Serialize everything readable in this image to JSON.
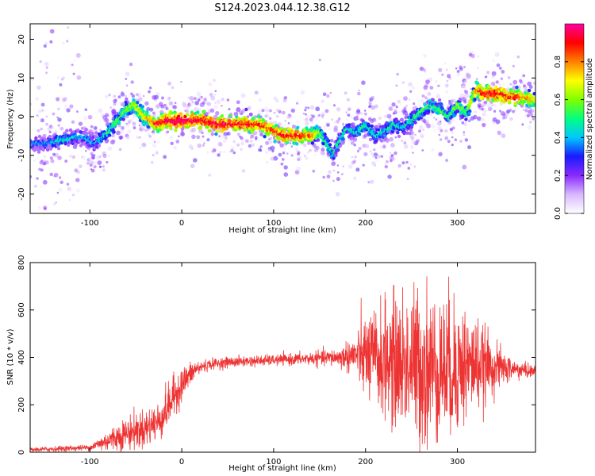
{
  "figure": {
    "title": "S124.2023.044.12.38.G12"
  },
  "chart_data": [
    {
      "type": "heatmap",
      "title": "",
      "xlabel": "Height of straight line (km)",
      "ylabel": "Frequency (Hz)",
      "xlim": [
        -165,
        385
      ],
      "ylim": [
        -25,
        24
      ],
      "xticks": [
        -100,
        0,
        100,
        200,
        300
      ],
      "yticks": [
        -20,
        -10,
        0,
        10,
        20
      ],
      "colorbar": {
        "label": "Normalized spectral amplitude",
        "range": [
          0,
          1
        ],
        "ticks": [
          0.0,
          0.2,
          0.4,
          0.6,
          0.8
        ],
        "colormap": [
          "#ffffff",
          "#d8b8ff",
          "#8a2bff",
          "#1a1aff",
          "#00c8ff",
          "#00ff80",
          "#80ff00",
          "#ffff00",
          "#ff8000",
          "#ff0000",
          "#ff00a0"
        ]
      },
      "ridge": {
        "x": [
          -150,
          -130,
          -110,
          -95,
          -80,
          -70,
          -60,
          -52,
          -45,
          -35,
          -25,
          -15,
          0,
          20,
          40,
          60,
          80,
          95,
          110,
          125,
          140,
          150,
          158,
          165,
          172,
          180,
          190,
          200,
          210,
          220,
          230,
          240,
          250,
          260,
          270,
          280,
          290,
          300,
          310,
          320,
          330,
          345,
          360,
          375,
          385
        ],
        "freq": [
          -7,
          -6,
          -5,
          -7,
          -4,
          -1,
          2,
          3,
          1,
          -1,
          -2,
          -1,
          -1,
          -1,
          -2,
          -2,
          -2,
          -3,
          -5,
          -5,
          -5,
          -4,
          -7,
          -10,
          -6,
          -3,
          -4,
          -2,
          -5,
          -4,
          -2,
          -3,
          -1,
          1,
          3,
          2,
          0,
          3,
          1,
          7,
          6,
          6,
          5,
          5,
          4
        ],
        "amplitude": [
          0.35,
          0.45,
          0.4,
          0.4,
          0.5,
          0.55,
          0.6,
          0.65,
          0.7,
          0.75,
          0.9,
          0.95,
          0.98,
          0.92,
          0.95,
          0.92,
          0.9,
          0.85,
          0.9,
          0.9,
          0.8,
          0.6,
          0.5,
          0.45,
          0.5,
          0.45,
          0.45,
          0.5,
          0.45,
          0.45,
          0.5,
          0.45,
          0.5,
          0.55,
          0.5,
          0.55,
          0.5,
          0.6,
          0.55,
          0.8,
          0.95,
          0.9,
          0.9,
          0.8,
          0.7
        ]
      },
      "grid": false
    },
    {
      "type": "line",
      "title": "",
      "xlabel": "Height of straight line (km)",
      "ylabel": "SNR (10 * v/v)",
      "xlim": [
        -165,
        385
      ],
      "ylim": [
        0,
        800
      ],
      "xticks": [
        -100,
        0,
        100,
        200,
        300
      ],
      "yticks": [
        0,
        200,
        400,
        600,
        800
      ],
      "line_color": "#ee3333",
      "grid": false,
      "envelope": {
        "x": [
          -165,
          -130,
          -100,
          -80,
          -60,
          -40,
          -25,
          -15,
          -5,
          5,
          15,
          30,
          50,
          80,
          110,
          140,
          170,
          190,
          200,
          215,
          230,
          250,
          265,
          280,
          300,
          320,
          340,
          360,
          385
        ],
        "mean": [
          10,
          15,
          20,
          50,
          80,
          100,
          130,
          190,
          260,
          310,
          350,
          370,
          380,
          385,
          390,
          395,
          400,
          410,
          400,
          390,
          380,
          370,
          360,
          350,
          360,
          370,
          360,
          350,
          340
        ],
        "noise": [
          6,
          8,
          8,
          30,
          45,
          55,
          55,
          60,
          55,
          40,
          25,
          15,
          15,
          15,
          15,
          18,
          25,
          60,
          120,
          150,
          180,
          210,
          230,
          210,
          190,
          130,
          70,
          30,
          15
        ]
      }
    }
  ]
}
